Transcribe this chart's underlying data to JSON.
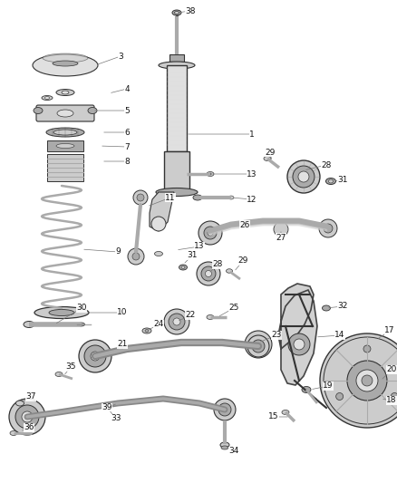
{
  "bg_color": "#ffffff",
  "line_color": "#333333",
  "part_dark": "#888888",
  "part_mid": "#aaaaaa",
  "part_light": "#cccccc",
  "part_lighter": "#e0e0e0",
  "label_fontsize": 6.5,
  "label_color": "#111111",
  "figsize": [
    4.38,
    5.33
  ],
  "dpi": 100,
  "callout_line_color": "#777777",
  "spring_color": "#999999"
}
